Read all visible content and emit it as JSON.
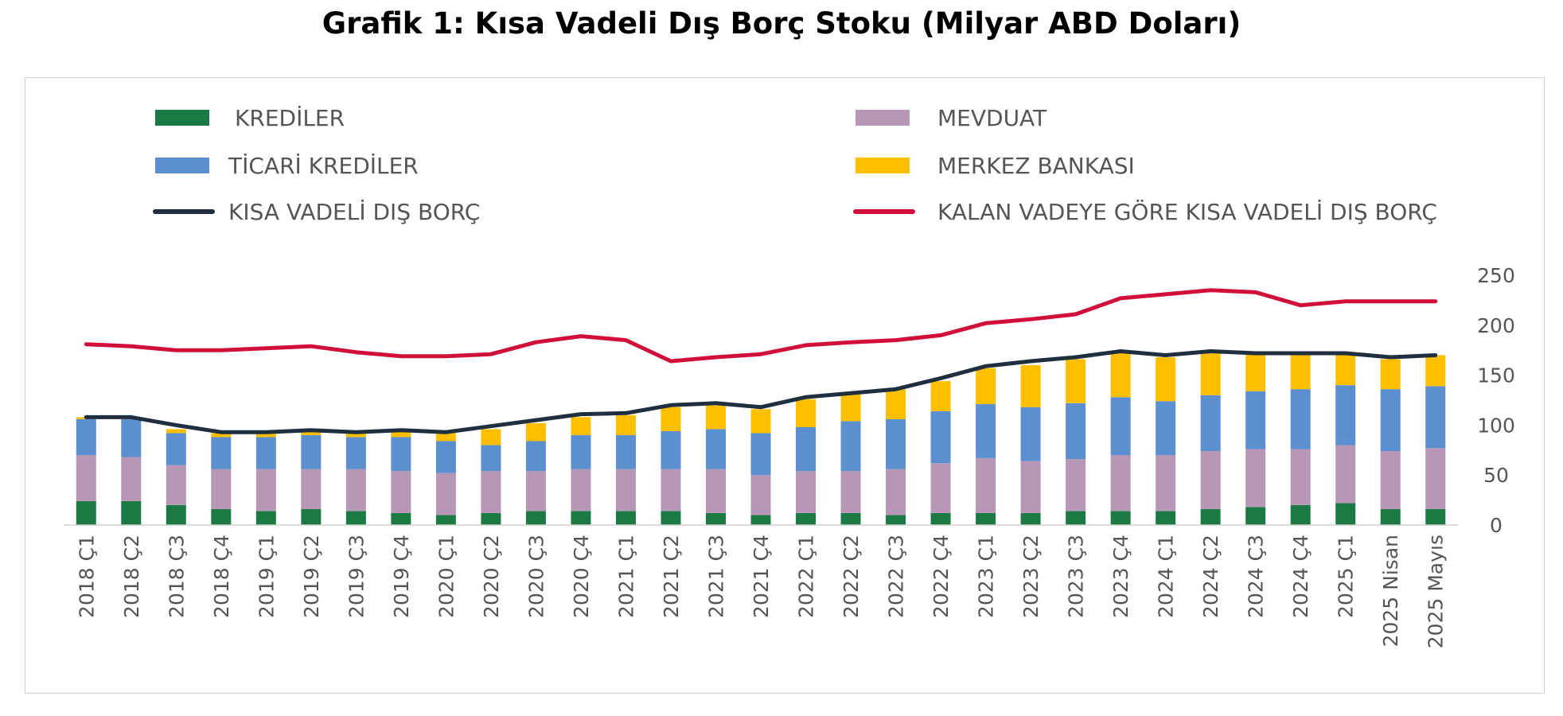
{
  "title": "Grafik 1: Kısa Vadeli Dış Borç Stoku (Milyar ABD Doları)",
  "chart_data": {
    "type": "bar",
    "stacked": true,
    "y_axis_position": "right",
    "ylim": [
      0,
      250
    ],
    "y_ticks": [
      "0",
      "50",
      "100",
      "150",
      "200",
      "250"
    ],
    "grid": false,
    "categories": [
      "2018 Ç1",
      "2018 Ç2",
      "2018 Ç3",
      "2018 Ç4",
      "2019 Ç1",
      "2019 Ç2",
      "2019 Ç3",
      "2019 Ç4",
      "2020 Ç1",
      "2020 Ç2",
      "2020 Ç3",
      "2020 Ç4",
      "2021 Ç1",
      "2021 Ç2",
      "2021 Ç3",
      "2021 Ç4",
      "2022 Ç1",
      "2022 Ç2",
      "2022 Ç3",
      "2022 Ç4",
      "2023 Ç1",
      "2023 Ç2",
      "2023 Ç3",
      "2023 Ç4",
      "2024 Ç1",
      "2024 Ç2",
      "2024 Ç3",
      "2024 Ç4",
      "2025 Ç1",
      "2025 Nisan",
      "2025 Mayıs"
    ],
    "series": [
      {
        "name": "KREDİLER",
        "type": "bar",
        "color": "#1b7a44",
        "values": [
          24,
          24,
          20,
          16,
          14,
          16,
          14,
          12,
          10,
          12,
          14,
          14,
          14,
          14,
          12,
          10,
          12,
          12,
          10,
          12,
          12,
          12,
          14,
          14,
          14,
          16,
          18,
          20,
          22,
          16,
          16
        ]
      },
      {
        "name": "MEVDUAT",
        "type": "bar",
        "color": "#b797b5",
        "values": [
          46,
          44,
          40,
          40,
          42,
          40,
          42,
          42,
          42,
          42,
          40,
          42,
          42,
          42,
          44,
          40,
          42,
          42,
          46,
          50,
          55,
          52,
          52,
          56,
          56,
          58,
          58,
          56,
          58,
          58,
          61
        ]
      },
      {
        "name": "TİCARİ KREDİLER",
        "type": "bar",
        "color": "#5b8fd0",
        "values": [
          36,
          38,
          32,
          32,
          32,
          34,
          32,
          34,
          32,
          26,
          30,
          34,
          34,
          38,
          40,
          42,
          44,
          50,
          50,
          52,
          54,
          54,
          56,
          58,
          54,
          56,
          58,
          60,
          60,
          62,
          62
        ]
      },
      {
        "name": "MERKEZ BANKASI",
        "type": "bar",
        "color": "#fdbf00",
        "values": [
          2,
          1,
          4,
          4,
          4,
          4,
          4,
          6,
          8,
          16,
          18,
          18,
          20,
          24,
          24,
          24,
          28,
          28,
          30,
          30,
          36,
          42,
          44,
          46,
          44,
          44,
          38,
          36,
          32,
          30,
          31
        ]
      },
      {
        "name": "KISA VADELİ DIŞ BORÇ",
        "type": "line",
        "color": "#1f2f3f",
        "values": [
          108,
          108,
          100,
          93,
          93,
          95,
          93,
          95,
          93,
          99,
          105,
          111,
          112,
          120,
          122,
          118,
          128,
          132,
          136,
          147,
          159,
          164,
          168,
          174,
          170,
          174,
          172,
          172,
          172,
          168,
          170
        ]
      },
      {
        "name": "KALAN VADEYE GÖRE KISA VADELİ DIŞ BORÇ",
        "type": "line",
        "color": "#d0103a",
        "values": [
          181,
          179,
          175,
          175,
          177,
          179,
          173,
          169,
          169,
          171,
          183,
          189,
          185,
          164,
          168,
          171,
          180,
          183,
          185,
          190,
          202,
          206,
          211,
          227,
          231,
          235,
          233,
          220,
          224,
          224,
          224
        ]
      }
    ]
  },
  "legend": [
    {
      "label": "KREDİLER",
      "color": "#1b7a44",
      "kind": "box"
    },
    {
      "label": "MEVDUAT",
      "color": "#b797b5",
      "kind": "box"
    },
    {
      "label": "TİCARİ KREDİLER",
      "color": "#5b8fd0",
      "kind": "box"
    },
    {
      "label": "MERKEZ BANKASI",
      "color": "#fdbf00",
      "kind": "box"
    },
    {
      "label": "KISA VADELİ DIŞ BORÇ",
      "color": "#1f2f3f",
      "kind": "line"
    },
    {
      "label": "KALAN VADEYE GÖRE KISA VADELİ DIŞ BORÇ",
      "color": "#d0103a",
      "kind": "line"
    }
  ]
}
